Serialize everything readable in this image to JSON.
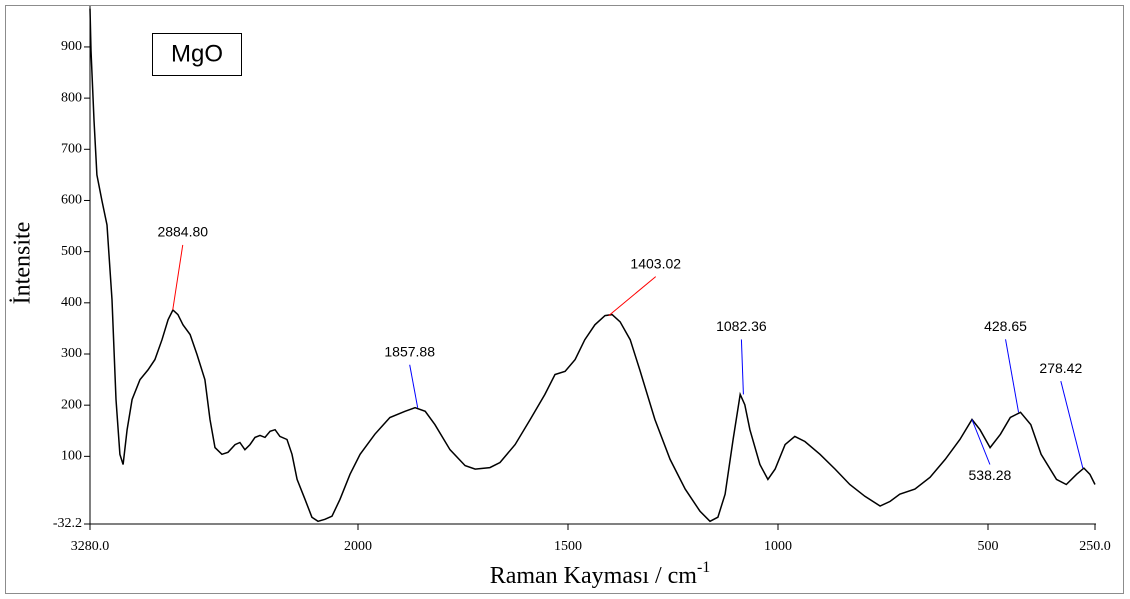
{
  "chart_data": {
    "type": "line",
    "title": "MgO",
    "x_label": "Raman Kayması / cm",
    "x_label_sup": "-1",
    "y_label": "İntensite",
    "xlim": [
      3280,
      250
    ],
    "xticks": [
      {
        "value": 3280,
        "label": "3280.0"
      },
      2000,
      1500,
      1000,
      500,
      {
        "value": 250,
        "label": "250.0"
      }
    ],
    "ylim": [
      -32.2,
      980
    ],
    "yticks": [
      -32.2,
      100,
      200,
      300,
      400,
      500,
      600,
      700,
      800,
      900
    ],
    "grid": false,
    "series": [
      {
        "name": "MgO",
        "color": "#000000",
        "x": [
          3280,
          3275,
          3261,
          3247,
          3223,
          3199,
          3175,
          3156,
          3137,
          3122,
          3103,
          3079,
          3041,
          3003,
          2970,
          2936,
          2907,
          2884,
          2860,
          2836,
          2802,
          2769,
          2731,
          2707,
          2683,
          2650,
          2621,
          2587,
          2564,
          2540,
          2516,
          2492,
          2468,
          2444,
          2420,
          2396,
          2373,
          2339,
          2315,
          2291,
          2253,
          2220,
          2191,
          2158,
          2124,
          2086,
          2038,
          1995,
          1960,
          1924,
          1888,
          1864,
          1840,
          1817,
          1781,
          1745,
          1721,
          1686,
          1662,
          1626,
          1590,
          1555,
          1531,
          1507,
          1483,
          1460,
          1436,
          1412,
          1395,
          1376,
          1352,
          1329,
          1293,
          1257,
          1221,
          1186,
          1162,
          1143,
          1126,
          1107,
          1090,
          1079,
          1067,
          1043,
          1024,
          1007,
          983,
          960,
          936,
          900,
          864,
          829,
          793,
          757,
          733,
          710,
          674,
          638,
          602,
          567,
          538,
          519,
          495,
          471,
          448,
          424,
          400,
          376,
          340,
          317,
          293,
          276,
          262,
          250
        ],
        "values": [
          975,
          893,
          757,
          650,
          600,
          552,
          406,
          211,
          104,
          84,
          152,
          211,
          250,
          269,
          289,
          328,
          367,
          386,
          377,
          357,
          338,
          299,
          250,
          172,
          117,
          104,
          108,
          123,
          127,
          113,
          123,
          137,
          141,
          137,
          149,
          152,
          139,
          133,
          104,
          55,
          16,
          -19,
          -27,
          -23,
          -17,
          16,
          65,
          104,
          143,
          176,
          188,
          195,
          188,
          162,
          113,
          82,
          75,
          78,
          88,
          123,
          172,
          221,
          260,
          266,
          289,
          328,
          357,
          375,
          377,
          363,
          328,
          269,
          172,
          94,
          36,
          -7,
          -27,
          -19,
          26,
          133,
          221,
          201,
          152,
          84,
          55,
          75,
          123,
          139,
          129,
          104,
          75,
          45,
          22,
          3,
          12,
          26,
          36,
          59,
          94,
          133,
          172,
          152,
          117,
          143,
          176,
          186,
          162,
          104,
          55,
          45,
          65,
          77,
          65,
          45
        ]
      }
    ],
    "annotations": [
      {
        "label": "2884.80",
        "x": 2884.8,
        "y": 386,
        "color": "#ff0000"
      },
      {
        "label": "1857.88",
        "x": 1857.88,
        "y": 195,
        "color": "#0000ff"
      },
      {
        "label": "1403.02",
        "x": 1403.02,
        "y": 375,
        "color": "#ff0000"
      },
      {
        "label": "1082.36",
        "x": 1082.36,
        "y": 221,
        "color": "#0000ff"
      },
      {
        "label": "538.28",
        "x": 538.28,
        "y": 172,
        "color": "#0000ff"
      },
      {
        "label": "428.65",
        "x": 428.65,
        "y": 186,
        "color": "#0000ff"
      },
      {
        "label": "278.42",
        "x": 278.42,
        "y": 77,
        "color": "#0000ff"
      }
    ]
  }
}
